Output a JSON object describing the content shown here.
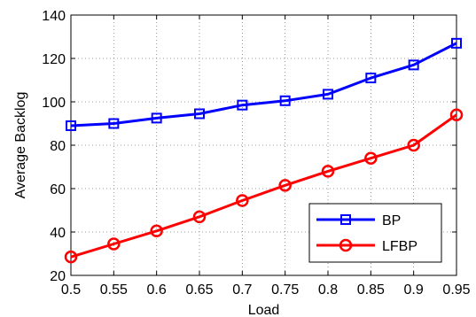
{
  "chart_data": {
    "type": "line",
    "xlabel": "Load",
    "ylabel": "Average Backlog",
    "x": [
      0.5,
      0.55,
      0.6,
      0.65,
      0.7,
      0.75,
      0.8,
      0.85,
      0.9,
      0.95
    ],
    "xlim": [
      0.5,
      0.95
    ],
    "ylim": [
      20,
      140
    ],
    "xticks": [
      "0.5",
      "0.55",
      "0.6",
      "0.65",
      "0.7",
      "0.75",
      "0.8",
      "0.85",
      "0.9",
      "0.95"
    ],
    "yticks": [
      "20",
      "40",
      "60",
      "80",
      "100",
      "120",
      "140"
    ],
    "grid": true,
    "legend_position": "bottom-right",
    "series": [
      {
        "name": "BP",
        "color": "#0000ff",
        "marker": "square",
        "values": [
          89,
          90,
          92.5,
          94.5,
          98.5,
          100.5,
          103.5,
          111,
          117,
          127
        ]
      },
      {
        "name": "LFBP",
        "color": "#ff0000",
        "marker": "circle",
        "values": [
          28.5,
          34.5,
          40.5,
          47,
          54.5,
          61.5,
          68,
          74,
          80,
          94
        ]
      }
    ]
  }
}
